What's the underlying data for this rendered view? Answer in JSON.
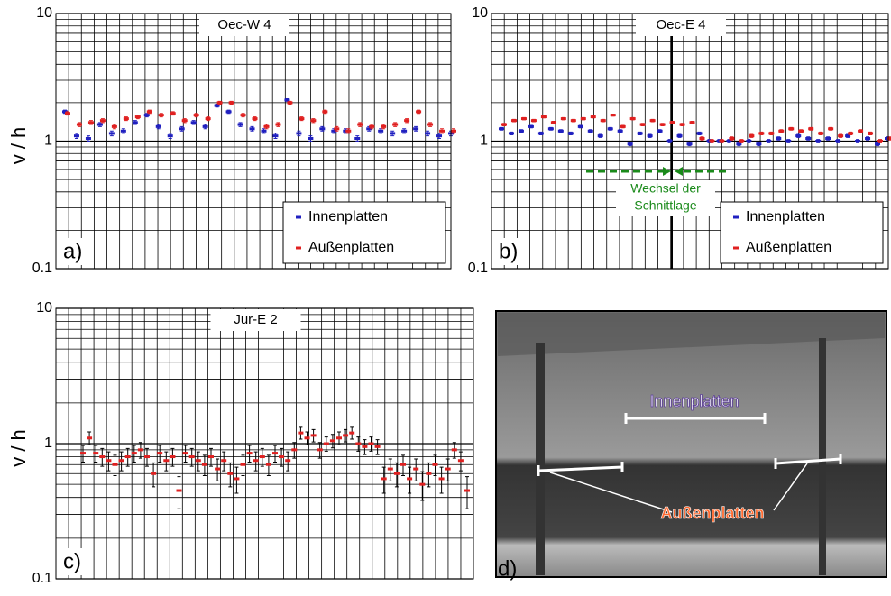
{
  "chart_data": [
    {
      "type": "errorbar",
      "title": "Oec-W 4",
      "panel_label": "a)",
      "ylabel": "v / h",
      "log_scale": true,
      "grid": true,
      "legend": "lower right",
      "ylim": [
        0.1,
        10
      ],
      "yticks": [
        0.1,
        1,
        10
      ],
      "series": [
        {
          "name": "Innenplatten",
          "color": "#2020c0",
          "error": 0.05,
          "values": [
            1.7,
            1.1,
            1.05,
            1.35,
            1.15,
            1.2,
            1.4,
            1.6,
            1.3,
            1.1,
            1.25,
            1.4,
            1.3,
            1.9,
            1.7,
            1.35,
            1.25,
            1.2,
            1.1,
            2.1,
            1.15,
            1.05,
            1.25,
            1.2,
            1.2,
            1.05,
            1.25,
            1.2,
            1.15,
            1.2,
            1.25,
            1.15,
            1.1,
            1.15
          ]
        },
        {
          "name": "Außenplatten",
          "color": "#e02020",
          "error": 0.05,
          "values": [
            1.65,
            1.35,
            1.4,
            1.45,
            1.3,
            1.5,
            1.55,
            1.7,
            1.6,
            1.65,
            1.45,
            1.6,
            1.5,
            2.0,
            2.0,
            1.6,
            1.5,
            1.3,
            1.35,
            2.0,
            1.5,
            1.45,
            1.7,
            1.25,
            1.2,
            1.35,
            1.3,
            1.3,
            1.35,
            1.45,
            1.7,
            1.35,
            1.2,
            1.2
          ]
        }
      ]
    },
    {
      "type": "errorbar",
      "title": "Oec-E 4",
      "panel_label": "b)",
      "log_scale": true,
      "grid": true,
      "legend": "lower right",
      "ylim": [
        0.1,
        10
      ],
      "yticks": [
        0.1,
        1,
        10
      ],
      "annotation": [
        "Wechsel der",
        "Schnittlage"
      ],
      "annotation_color": "#1a8a1a",
      "series": [
        {
          "name": "Innenplatten",
          "color": "#2020c0",
          "error": 0.03,
          "values": [
            1.25,
            1.15,
            1.2,
            1.3,
            1.15,
            1.25,
            1.2,
            1.15,
            1.3,
            1.2,
            1.1,
            1.25,
            1.2,
            0.95,
            1.15,
            1.1,
            1.2,
            1.0,
            1.1,
            0.95,
            1.15,
            1.0,
            1.0,
            1.0,
            0.95,
            1.0,
            0.95,
            1.0,
            1.05,
            1.0,
            1.1,
            1.05,
            1.0,
            1.05,
            1.0,
            1.1,
            1.0,
            1.05,
            0.95,
            1.05
          ]
        },
        {
          "name": "Außenplatten",
          "color": "#e02020",
          "error": 0.03,
          "values": [
            1.35,
            1.45,
            1.5,
            1.45,
            1.55,
            1.4,
            1.5,
            1.45,
            1.5,
            1.55,
            1.45,
            1.6,
            1.3,
            1.5,
            1.35,
            1.45,
            1.35,
            1.4,
            1.35,
            1.4,
            1.05,
            1.0,
            1.0,
            1.05,
            1.0,
            1.1,
            1.15,
            1.15,
            1.2,
            1.25,
            1.2,
            1.25,
            1.15,
            1.25,
            1.1,
            1.15,
            1.2,
            1.15,
            1.0,
            1.05
          ]
        }
      ]
    },
    {
      "type": "errorbar",
      "title": "Jur-E 2",
      "panel_label": "c)",
      "ylabel": "v / h",
      "log_scale": true,
      "grid": true,
      "ylim": [
        0.1,
        10
      ],
      "yticks": [
        0.1,
        1,
        10
      ],
      "series": [
        {
          "color": "#e02020",
          "error": 0.12,
          "values": [
            0.85,
            1.1,
            0.85,
            0.8,
            0.75,
            0.7,
            0.75,
            0.8,
            0.85,
            0.9,
            0.8,
            0.6,
            0.85,
            0.75,
            0.8,
            0.45,
            0.85,
            0.8,
            0.75,
            0.7,
            0.8,
            0.65,
            0.75,
            0.6,
            0.55,
            0.7,
            0.85,
            0.75,
            0.8,
            0.7,
            0.85,
            0.8,
            0.75,
            0.9,
            1.2,
            1.1,
            1.15,
            0.9,
            1.0,
            1.05,
            1.1,
            1.15,
            1.2,
            1.0,
            0.95,
            1.0,
            0.95,
            0.55,
            0.65,
            0.6,
            0.7,
            0.55,
            0.65,
            0.5,
            0.6,
            0.7,
            0.55,
            0.65,
            0.9,
            0.75,
            0.45
          ]
        }
      ]
    }
  ],
  "photo": {
    "label": "d)",
    "inner": "Innenplatten",
    "outer": "Außenplatten"
  }
}
